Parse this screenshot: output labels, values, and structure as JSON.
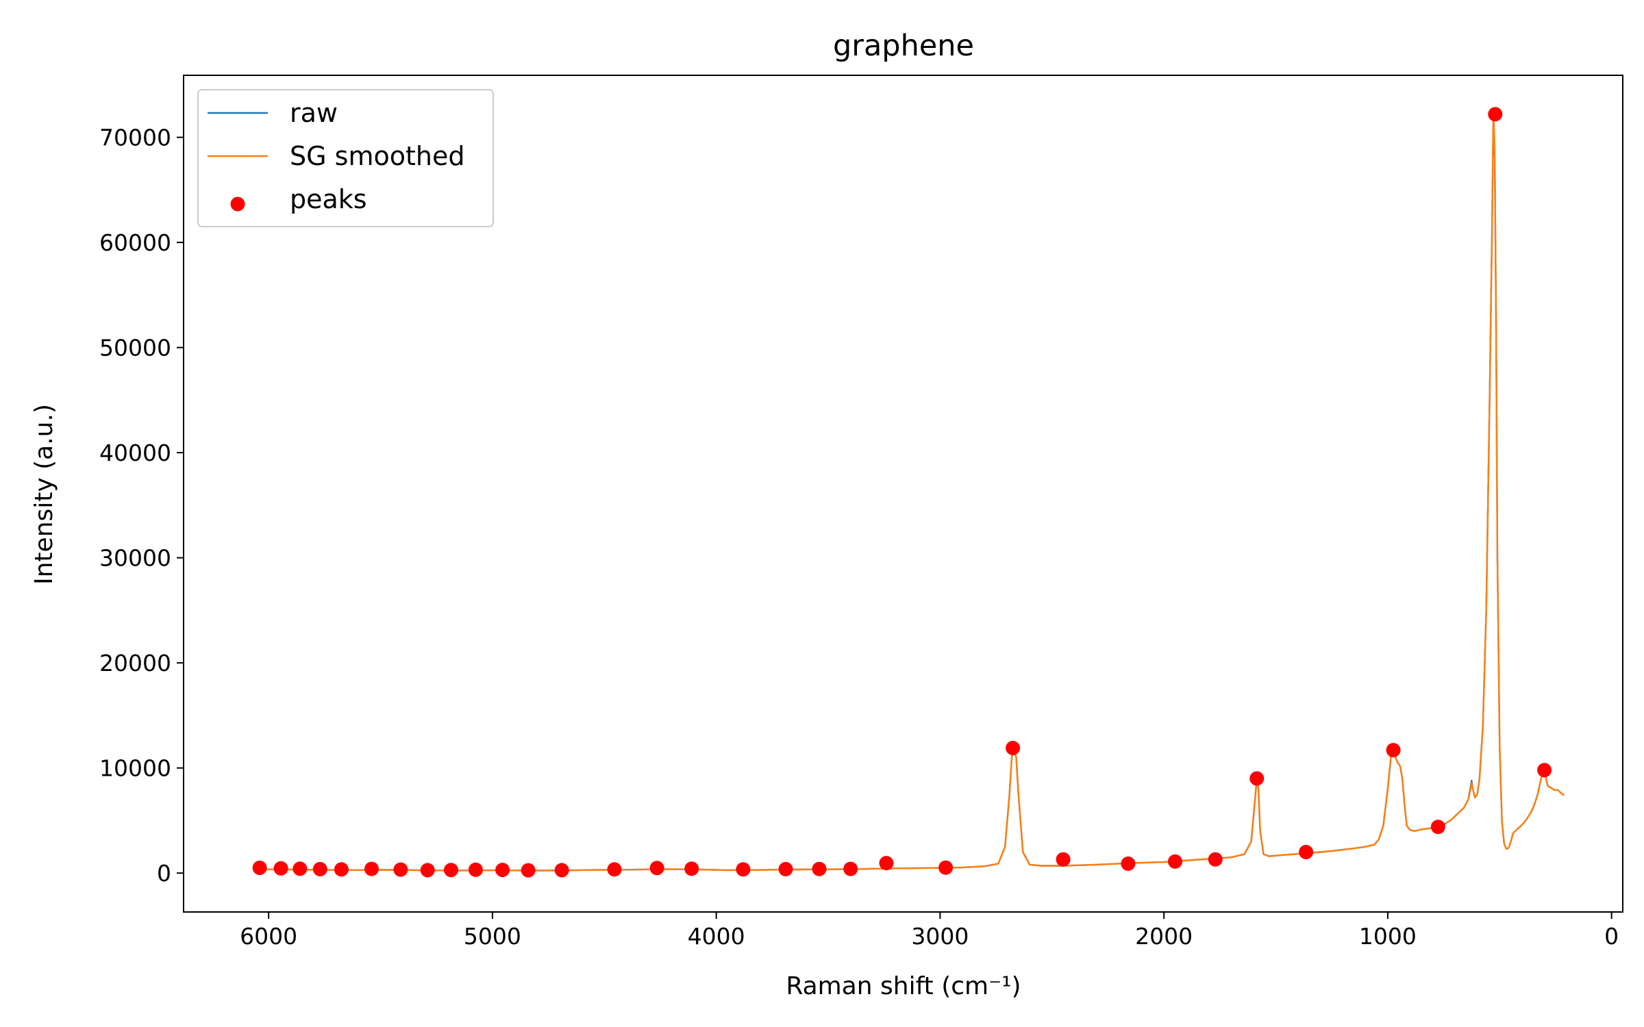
{
  "chart_data": {
    "type": "line",
    "title": "graphene",
    "xlabel": "Raman shift (cm⁻¹)",
    "ylabel": "Intensity (a.u.)",
    "xlim": [
      6380,
      -50
    ],
    "ylim": [
      -3700,
      75900
    ],
    "x_ticks": [
      6000,
      5000,
      4000,
      3000,
      2000,
      1000,
      0
    ],
    "y_ticks": [
      0,
      10000,
      20000,
      30000,
      40000,
      50000,
      60000,
      70000
    ],
    "x_axis_inverted": true,
    "grid": false,
    "legend_position": "top-left",
    "series": [
      {
        "name": "raw",
        "kind": "line",
        "color": "#1f77b4",
        "x": [
          6050,
          5900,
          5750,
          5600,
          5450,
          5300,
          5150,
          5000,
          4850,
          4700,
          4550,
          4400,
          4250,
          4100,
          3950,
          3800,
          3650,
          3500,
          3350,
          3200,
          3050,
          2900,
          2800,
          2740,
          2710,
          2690,
          2680,
          2670,
          2660,
          2650,
          2630,
          2600,
          2550,
          2450,
          2300,
          2150,
          2000,
          1900,
          1800,
          1700,
          1640,
          1610,
          1595,
          1585,
          1578,
          1570,
          1555,
          1530,
          1450,
          1350,
          1250,
          1150,
          1100,
          1060,
          1040,
          1020,
          1000,
          985,
          975,
          965,
          955,
          945,
          935,
          925,
          915,
          900,
          880,
          850,
          800,
          760,
          720,
          690,
          660,
          640,
          630,
          625,
          620,
          610,
          600,
          590,
          575,
          560,
          545,
          535,
          528,
          522,
          516,
          510,
          500,
          490,
          480,
          470,
          460,
          450,
          440,
          420,
          400,
          380,
          360,
          345,
          330,
          318,
          305,
          295,
          285,
          270,
          255,
          240,
          225,
          212
        ],
        "y": [
          350,
          330,
          300,
          290,
          310,
          260,
          250,
          270,
          240,
          250,
          300,
          320,
          380,
          350,
          280,
          300,
          340,
          360,
          390,
          450,
          480,
          530,
          650,
          900,
          2500,
          7500,
          11000,
          11800,
          11000,
          7500,
          2000,
          800,
          700,
          700,
          800,
          950,
          1050,
          1200,
          1350,
          1500,
          1800,
          3000,
          6500,
          9000,
          8000,
          4000,
          1800,
          1600,
          1750,
          1900,
          2100,
          2350,
          2500,
          2700,
          3200,
          4500,
          8000,
          11200,
          11700,
          11000,
          10500,
          10200,
          9000,
          6500,
          4500,
          4100,
          4000,
          4150,
          4300,
          4500,
          5000,
          5600,
          6200,
          7000,
          8200,
          8800,
          8000,
          7200,
          7500,
          9000,
          14000,
          25000,
          45000,
          60000,
          72000,
          68000,
          52000,
          30000,
          12000,
          5000,
          2800,
          2300,
          2400,
          3000,
          3800,
          4200,
          4600,
          5100,
          5800,
          6500,
          7500,
          8700,
          9800,
          9200,
          8300,
          8100,
          7900,
          7900,
          7600,
          7400
        ]
      },
      {
        "name": "SG smoothed",
        "kind": "line",
        "color": "#ff7f0e",
        "x": [
          6050,
          5900,
          5750,
          5600,
          5450,
          5300,
          5150,
          5000,
          4850,
          4700,
          4550,
          4400,
          4250,
          4100,
          3950,
          3800,
          3650,
          3500,
          3350,
          3200,
          3050,
          2900,
          2800,
          2740,
          2710,
          2690,
          2680,
          2670,
          2660,
          2650,
          2630,
          2600,
          2550,
          2450,
          2300,
          2150,
          2000,
          1900,
          1800,
          1700,
          1640,
          1610,
          1595,
          1585,
          1578,
          1570,
          1555,
          1530,
          1450,
          1350,
          1250,
          1150,
          1100,
          1060,
          1040,
          1020,
          1000,
          985,
          975,
          965,
          955,
          945,
          935,
          925,
          915,
          900,
          880,
          850,
          800,
          760,
          720,
          690,
          660,
          640,
          630,
          625,
          620,
          610,
          600,
          590,
          575,
          560,
          545,
          535,
          528,
          522,
          516,
          510,
          500,
          490,
          480,
          470,
          460,
          450,
          440,
          420,
          400,
          380,
          360,
          345,
          330,
          318,
          305,
          295,
          285,
          270,
          255,
          240,
          225,
          212
        ],
        "y": [
          350,
          330,
          300,
          290,
          310,
          260,
          250,
          270,
          240,
          250,
          300,
          320,
          380,
          350,
          280,
          300,
          340,
          360,
          390,
          450,
          480,
          530,
          650,
          900,
          2500,
          7500,
          11000,
          11900,
          11000,
          7500,
          2000,
          800,
          700,
          700,
          800,
          950,
          1050,
          1200,
          1350,
          1500,
          1800,
          3000,
          6500,
          9000,
          8000,
          4000,
          1800,
          1600,
          1750,
          1900,
          2100,
          2350,
          2500,
          2700,
          3200,
          4500,
          8000,
          11200,
          11700,
          11000,
          10500,
          10200,
          9000,
          6500,
          4500,
          4100,
          4000,
          4150,
          4300,
          4500,
          5000,
          5600,
          6200,
          7000,
          8000,
          8600,
          8000,
          7200,
          7500,
          9000,
          14000,
          25000,
          45000,
          60000,
          72500,
          69000,
          52000,
          30000,
          12000,
          5000,
          2800,
          2300,
          2400,
          3000,
          3800,
          4200,
          4600,
          5100,
          5800,
          6500,
          7500,
          8700,
          9800,
          9200,
          8300,
          8100,
          7900,
          7900,
          7600,
          7400
        ]
      },
      {
        "name": "peaks",
        "kind": "scatter",
        "color": "#ff0000",
        "x": [
          6040,
          5945,
          5860,
          5770,
          5675,
          5540,
          5410,
          5290,
          5185,
          5075,
          4955,
          4840,
          4690,
          4455,
          4265,
          4110,
          3880,
          3690,
          3540,
          3400,
          3240,
          2975,
          2675,
          2450,
          2160,
          1950,
          1770,
          1585,
          1365,
          975,
          775,
          520,
          300
        ],
        "y": [
          500,
          450,
          420,
          380,
          350,
          400,
          330,
          280,
          290,
          320,
          300,
          270,
          280,
          350,
          480,
          420,
          350,
          380,
          390,
          400,
          950,
          520,
          11900,
          1300,
          900,
          1100,
          1300,
          9000,
          2000,
          11700,
          4400,
          72200,
          9800
        ]
      }
    ]
  }
}
